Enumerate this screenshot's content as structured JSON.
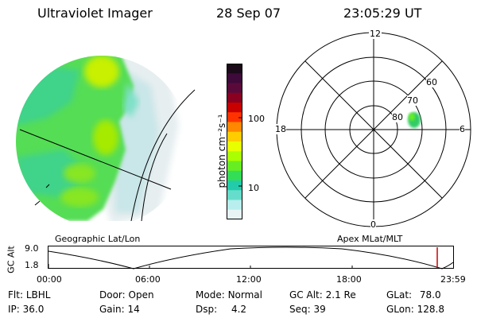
{
  "header": {
    "title": "Ultraviolet Imager",
    "date": "28 Sep 07",
    "time": "23:05:29 UT"
  },
  "colorbar": {
    "label": "photon cm⁻²s⁻¹",
    "ticks": [
      "100",
      "10"
    ],
    "colors": [
      "#1b0a1a",
      "#3d0a3a",
      "#5a0a3a",
      "#8a0020",
      "#c80000",
      "#ff3300",
      "#ff8800",
      "#ffcc00",
      "#e8ff00",
      "#aaff00",
      "#66ee22",
      "#33dd55",
      "#22ccaa",
      "#66ddcc",
      "#b9eeee",
      "#e8f4f4"
    ]
  },
  "polar_plot": {
    "clock_labels": {
      "top": "12",
      "left": "18",
      "right": "6",
      "bottom": "0"
    },
    "lat_labels": [
      "80",
      "70",
      "60"
    ]
  },
  "section_labels": {
    "geographic": "Geographic Lat/Lon",
    "apex": "Apex MLat/MLT"
  },
  "gc_alt": {
    "axis_label": "GC Alt",
    "y_ticks": [
      "9.0",
      "1.8"
    ],
    "x_ticks": [
      "00:00",
      "06:00",
      "12:00",
      "18:00",
      "23:59"
    ],
    "marker_color": "#cc0000"
  },
  "footer": {
    "flt_label": "Flt:",
    "flt_value": "LBHL",
    "ip_label": "IP:",
    "ip_value": "36.0",
    "door_label": "Door:",
    "door_value": "Open",
    "gain_label": "Gain:",
    "gain_value": "14",
    "mode_label": "Mode:",
    "mode_value": "Normal",
    "dsp_label": "Dsp:",
    "dsp_value": "4.2",
    "gcalt_label": "GC Alt:",
    "gcalt_value": "2.1 Re",
    "seq_label": "Seq:",
    "seq_value": "39",
    "glat_label": "GLat:",
    "glat_value": "78.0",
    "glon_label": "GLon:",
    "glon_value": "128.8"
  }
}
